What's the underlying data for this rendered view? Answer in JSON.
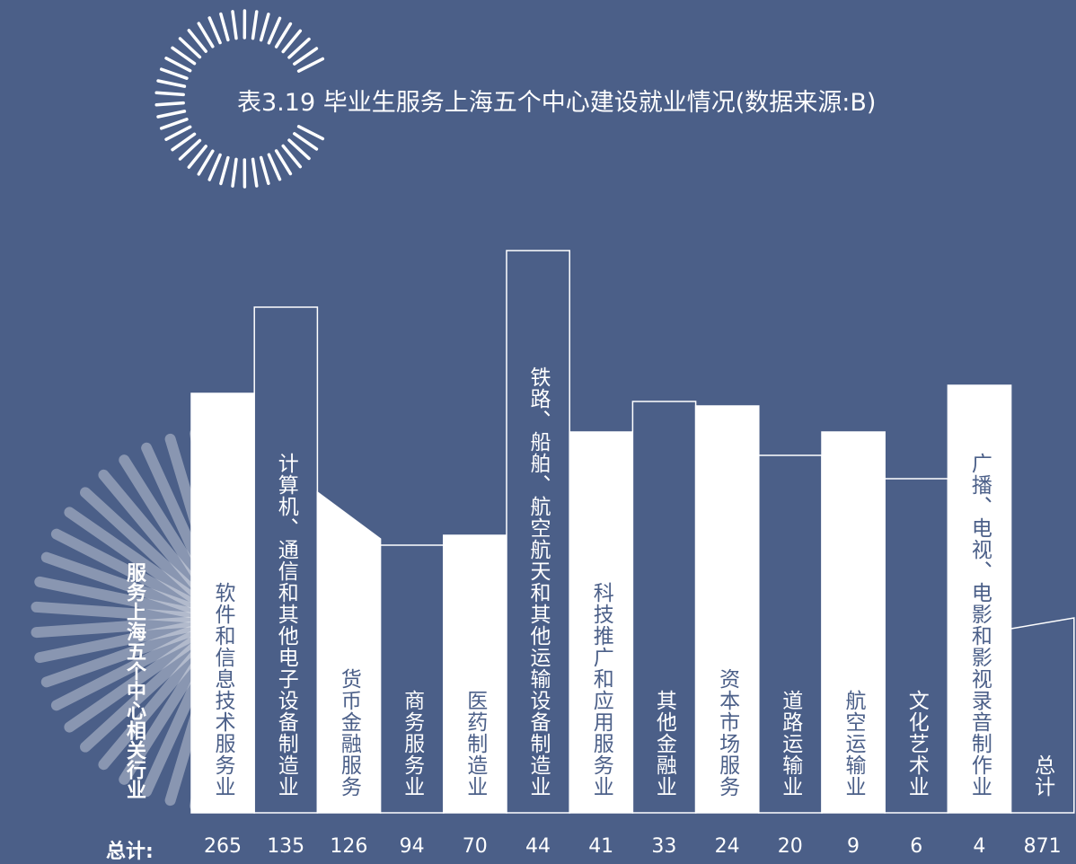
{
  "title": "表3.19 毕业生服务上海五个中心建设就业情况(数据来源:B)",
  "side_label": "服务上海五个中心相关行业",
  "total_label": "总计:",
  "columns": [
    {
      "label": "软件和信息技术服务业",
      "total": "265"
    },
    {
      "label": "计算机、通信和其他电子设备制造业",
      "total": "135"
    },
    {
      "label": "货币金融服务",
      "total": "126"
    },
    {
      "label": "商务服务业",
      "total": "94"
    },
    {
      "label": "医药制造业",
      "total": "70"
    },
    {
      "label": "铁路、船舶、航空航天和其他运输设备制造业",
      "total": "44"
    },
    {
      "label": "科技推广和应用服务业",
      "total": "41"
    },
    {
      "label": "其他金融业",
      "total": "33"
    },
    {
      "label": "资本市场服务",
      "total": "24"
    },
    {
      "label": "道路运输业",
      "total": "20"
    },
    {
      "label": "航空运输业",
      "total": "9"
    },
    {
      "label": "文化艺术业",
      "total": "6"
    },
    {
      "label": "广播、电视、电影和影视录音制作业",
      "total": "4"
    },
    {
      "label": "总计",
      "total": "871"
    }
  ]
}
